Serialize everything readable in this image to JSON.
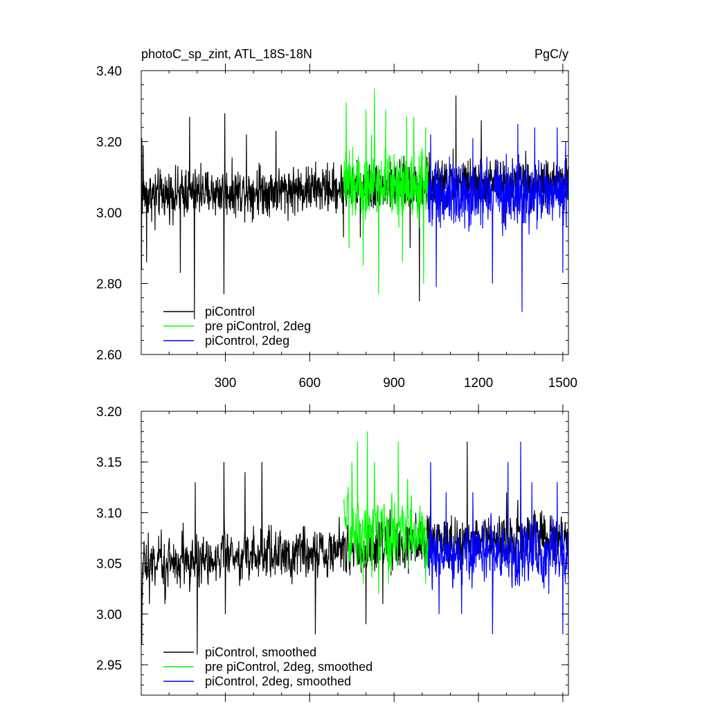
{
  "chart_data": [
    {
      "type": "line",
      "title_left": "photoC_sp_zint, ATL_18S-18N",
      "title_right": "PgC/y",
      "xlim": [
        1,
        1520
      ],
      "ylim": [
        2.6,
        3.4
      ],
      "x_ticks": [
        300,
        600,
        900,
        1200,
        1500
      ],
      "x_tick_labels": [
        "300",
        "600",
        "900",
        "1200",
        "1500"
      ],
      "y_ticks": [
        2.6,
        2.8,
        3.0,
        3.2,
        3.4
      ],
      "y_tick_labels": [
        "2.60",
        "2.80",
        "3.00",
        "3.20",
        "3.40"
      ],
      "legend_position": "bottom-left",
      "series": [
        {
          "name": "piControl",
          "color": "#000000",
          "x_start": 1,
          "x_end": 1520,
          "mean": 3.05,
          "noise": 0.055,
          "trend_end": 0.04,
          "peaks": [
            [
              2,
              2.84
            ],
            [
              3,
              3.21
            ],
            [
              8,
              3.19
            ],
            [
              20,
              2.86
            ],
            [
              50,
              2.95
            ],
            [
              140,
              2.83
            ],
            [
              160,
              3.12
            ],
            [
              173,
              3.27
            ],
            [
              190,
              2.7
            ],
            [
              213,
              3.14
            ],
            [
              290,
              3.1
            ],
            [
              295,
              2.77
            ],
            [
              298,
              3.28
            ],
            [
              375,
              3.22
            ],
            [
              420,
              3.14
            ],
            [
              480,
              3.23
            ],
            [
              720,
              2.93
            ],
            [
              780,
              2.93
            ],
            [
              957,
              2.9
            ],
            [
              990,
              2.75
            ],
            [
              1025,
              3.17
            ],
            [
              1110,
              3.18
            ],
            [
              1120,
              3.33
            ],
            [
              1210,
              3.26
            ],
            [
              1290,
              2.97
            ],
            [
              1400,
              3.05
            ]
          ]
        },
        {
          "name": "pre piControl, 2deg",
          "color": "#00ff00",
          "x_start": 721,
          "x_end": 1020,
          "mean": 3.08,
          "noise": 0.075,
          "trend_end": 0.0,
          "peaks": [
            [
              730,
              3.31
            ],
            [
              740,
              2.9
            ],
            [
              790,
              2.85
            ],
            [
              800,
              3.29
            ],
            [
              820,
              3.22
            ],
            [
              830,
              3.35
            ],
            [
              845,
              2.77
            ],
            [
              870,
              3.29
            ],
            [
              930,
              2.86
            ],
            [
              945,
              3.27
            ],
            [
              970,
              3.27
            ],
            [
              1005,
              2.8
            ],
            [
              1012,
              3.24
            ]
          ]
        },
        {
          "name": "piControl, 2deg",
          "color": "#0000ff",
          "x_start": 1021,
          "x_end": 1520,
          "mean": 3.05,
          "noise": 0.075,
          "trend_end": 0.0,
          "peaks": [
            [
              1030,
              3.22
            ],
            [
              1050,
              2.79
            ],
            [
              1070,
              3.13
            ],
            [
              1130,
              3.13
            ],
            [
              1180,
              3.21
            ],
            [
              1250,
              2.8
            ],
            [
              1265,
              3.15
            ],
            [
              1340,
              3.25
            ],
            [
              1355,
              2.72
            ],
            [
              1400,
              3.24
            ],
            [
              1480,
              3.24
            ],
            [
              1500,
              2.83
            ],
            [
              1510,
              3.2
            ]
          ]
        }
      ]
    },
    {
      "type": "line",
      "xlim": [
        1,
        1520
      ],
      "ylim": [
        2.92,
        3.2
      ],
      "x_ticks": [
        300,
        600,
        900,
        1200,
        1500
      ],
      "y_ticks": [
        2.95,
        3.0,
        3.05,
        3.1,
        3.15,
        3.2
      ],
      "y_tick_labels": [
        "2.95",
        "3.00",
        "3.05",
        "3.10",
        "3.15",
        "3.20"
      ],
      "legend_position": "bottom-left",
      "series": [
        {
          "name": "piControl, smoothed",
          "color": "#000000",
          "x_start": 1,
          "x_end": 1520,
          "mean": 3.05,
          "noise": 0.03,
          "trend_end": 0.03,
          "peaks": [
            [
              3,
              2.97
            ],
            [
              13,
              3.06
            ],
            [
              30,
              3.01
            ],
            [
              85,
              3.01
            ],
            [
              150,
              3.09
            ],
            [
              193,
              3.13
            ],
            [
              200,
              2.96
            ],
            [
              215,
              3.03
            ],
            [
              295,
              3.15
            ],
            [
              300,
              3.0
            ],
            [
              370,
              3.14
            ],
            [
              430,
              3.15
            ],
            [
              620,
              2.98
            ],
            [
              800,
              2.99
            ],
            [
              860,
              3.01
            ],
            [
              1160,
              3.17
            ],
            [
              1300,
              3.12
            ],
            [
              1420,
              3.1
            ]
          ]
        },
        {
          "name": "pre piControl, 2deg, smoothed",
          "color": "#00ff00",
          "x_start": 721,
          "x_end": 1020,
          "mean": 3.08,
          "noise": 0.04,
          "trend_end": 0.0,
          "peaks": [
            [
              750,
              3.15
            ],
            [
              770,
              3.17
            ],
            [
              790,
              3.03
            ],
            [
              805,
              3.18
            ],
            [
              830,
              3.15
            ],
            [
              845,
              3.02
            ],
            [
              880,
              3.03
            ],
            [
              915,
              3.17
            ],
            [
              990,
              3.1
            ],
            [
              1012,
              3.03
            ]
          ]
        },
        {
          "name": "piControl, 2deg, smoothed",
          "color": "#0000ff",
          "x_start": 1021,
          "x_end": 1520,
          "mean": 3.06,
          "noise": 0.035,
          "trend_end": 0.0,
          "peaks": [
            [
              1030,
              3.15
            ],
            [
              1060,
              3.0
            ],
            [
              1085,
              3.12
            ],
            [
              1140,
              3.0
            ],
            [
              1180,
              3.12
            ],
            [
              1250,
              2.98
            ],
            [
              1305,
              3.15
            ],
            [
              1350,
              3.17
            ],
            [
              1390,
              3.13
            ],
            [
              1450,
              3.02
            ],
            [
              1480,
              3.13
            ],
            [
              1500,
              2.98
            ]
          ]
        }
      ]
    }
  ]
}
